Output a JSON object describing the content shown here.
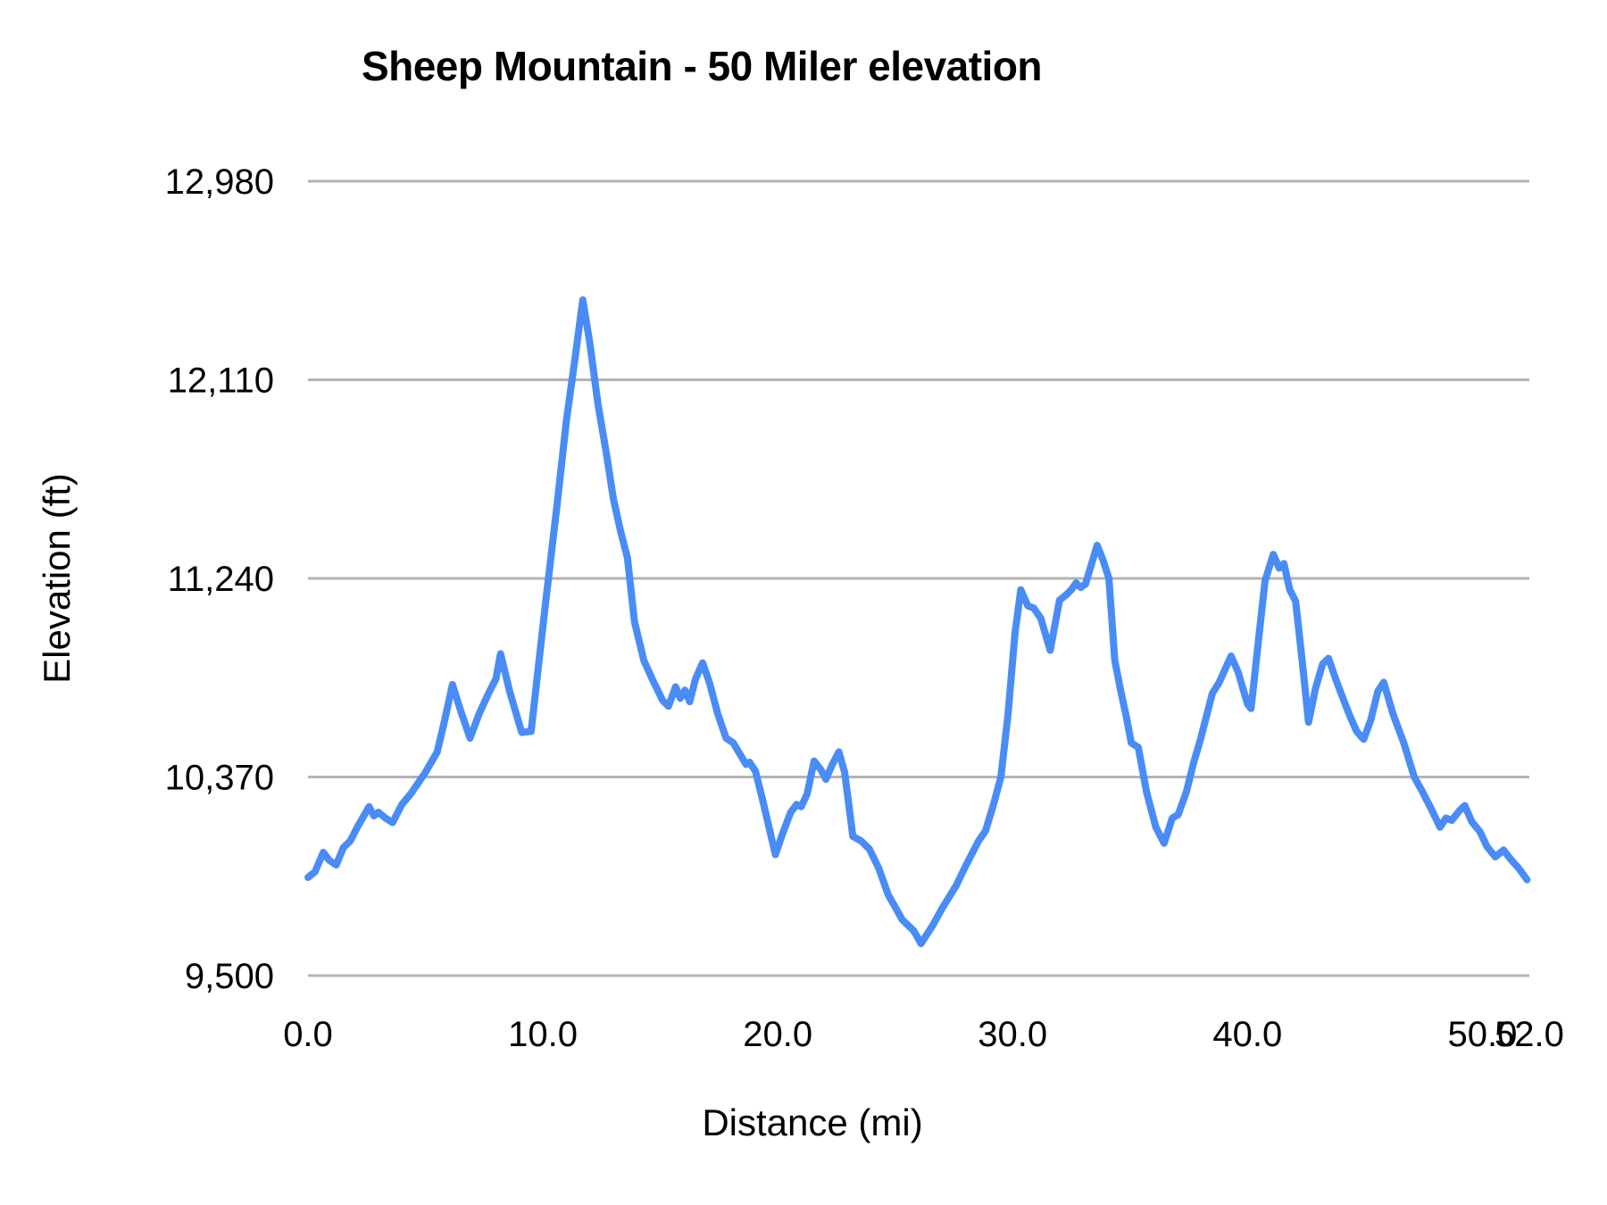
{
  "chart_data": {
    "type": "line",
    "title": "Sheep Mountain - 50 Miler elevation",
    "xlabel": "Distance (mi)",
    "ylabel": "Elevation (ft)",
    "xlim": [
      0,
      52
    ],
    "ylim": [
      9500,
      12980
    ],
    "grid": true,
    "legend_position": "none",
    "line_color": "#4a8cf5",
    "gridline_color": "#b3b3b3",
    "x_ticks": [
      0,
      10,
      20,
      30,
      40,
      50,
      52
    ],
    "x_tick_labels": [
      "0.0",
      "10.0",
      "20.0",
      "30.0",
      "40.0",
      "50.0",
      "52.0"
    ],
    "y_ticks": [
      9500,
      10370,
      11240,
      12110,
      12980
    ],
    "y_tick_labels": [
      "9,500",
      "10,370",
      "11,240",
      "12,110",
      "12,980"
    ],
    "series": [
      {
        "name": "Elevation",
        "points": [
          [
            0.0,
            9930
          ],
          [
            0.3,
            9955
          ],
          [
            0.65,
            10040
          ],
          [
            0.9,
            10005
          ],
          [
            1.2,
            9985
          ],
          [
            1.5,
            10060
          ],
          [
            1.8,
            10090
          ],
          [
            2.1,
            10150
          ],
          [
            2.35,
            10195
          ],
          [
            2.6,
            10240
          ],
          [
            2.8,
            10200
          ],
          [
            3.0,
            10215
          ],
          [
            3.3,
            10190
          ],
          [
            3.6,
            10170
          ],
          [
            4.0,
            10250
          ],
          [
            4.4,
            10300
          ],
          [
            5.0,
            10390
          ],
          [
            5.5,
            10480
          ],
          [
            5.8,
            10610
          ],
          [
            6.15,
            10775
          ],
          [
            6.5,
            10660
          ],
          [
            6.9,
            10540
          ],
          [
            7.3,
            10650
          ],
          [
            7.7,
            10740
          ],
          [
            8.0,
            10800
          ],
          [
            8.2,
            10910
          ],
          [
            8.6,
            10740
          ],
          [
            9.1,
            10565
          ],
          [
            9.5,
            10570
          ],
          [
            10.1,
            11120
          ],
          [
            10.6,
            11560
          ],
          [
            11.0,
            11930
          ],
          [
            11.35,
            12190
          ],
          [
            11.7,
            12460
          ],
          [
            12.0,
            12270
          ],
          [
            12.35,
            12000
          ],
          [
            12.7,
            11790
          ],
          [
            13.0,
            11590
          ],
          [
            13.3,
            11450
          ],
          [
            13.6,
            11330
          ],
          [
            13.9,
            11050
          ],
          [
            14.3,
            10880
          ],
          [
            14.7,
            10790
          ],
          [
            15.1,
            10705
          ],
          [
            15.35,
            10680
          ],
          [
            15.65,
            10765
          ],
          [
            15.85,
            10715
          ],
          [
            16.05,
            10750
          ],
          [
            16.25,
            10700
          ],
          [
            16.5,
            10800
          ],
          [
            16.8,
            10870
          ],
          [
            17.1,
            10780
          ],
          [
            17.45,
            10645
          ],
          [
            17.8,
            10540
          ],
          [
            18.1,
            10520
          ],
          [
            18.45,
            10460
          ],
          [
            18.65,
            10425
          ],
          [
            18.8,
            10435
          ],
          [
            19.05,
            10395
          ],
          [
            19.4,
            10250
          ],
          [
            19.9,
            10030
          ],
          [
            20.2,
            10120
          ],
          [
            20.55,
            10215
          ],
          [
            20.8,
            10250
          ],
          [
            21.0,
            10240
          ],
          [
            21.25,
            10295
          ],
          [
            21.55,
            10440
          ],
          [
            21.85,
            10400
          ],
          [
            22.05,
            10360
          ],
          [
            22.3,
            10420
          ],
          [
            22.6,
            10480
          ],
          [
            22.85,
            10390
          ],
          [
            23.2,
            10110
          ],
          [
            23.55,
            10090
          ],
          [
            23.9,
            10055
          ],
          [
            24.3,
            9970
          ],
          [
            24.7,
            9855
          ],
          [
            25.3,
            9745
          ],
          [
            25.8,
            9695
          ],
          [
            26.1,
            9640
          ],
          [
            26.6,
            9720
          ],
          [
            27.0,
            9795
          ],
          [
            27.6,
            9895
          ],
          [
            27.95,
            9970
          ],
          [
            28.3,
            10040
          ],
          [
            28.55,
            10090
          ],
          [
            28.85,
            10135
          ],
          [
            29.2,
            10255
          ],
          [
            29.5,
            10370
          ],
          [
            29.8,
            10640
          ],
          [
            30.1,
            11000
          ],
          [
            30.35,
            11190
          ],
          [
            30.65,
            11120
          ],
          [
            30.9,
            11110
          ],
          [
            31.2,
            11065
          ],
          [
            31.6,
            10925
          ],
          [
            32.0,
            11145
          ],
          [
            32.25,
            11165
          ],
          [
            32.5,
            11190
          ],
          [
            32.7,
            11220
          ],
          [
            32.9,
            11200
          ],
          [
            33.1,
            11215
          ],
          [
            33.35,
            11300
          ],
          [
            33.6,
            11385
          ],
          [
            33.85,
            11320
          ],
          [
            34.1,
            11240
          ],
          [
            34.35,
            10880
          ],
          [
            34.6,
            10750
          ],
          [
            34.85,
            10630
          ],
          [
            35.05,
            10520
          ],
          [
            35.35,
            10500
          ],
          [
            35.7,
            10305
          ],
          [
            36.1,
            10150
          ],
          [
            36.45,
            10080
          ],
          [
            36.8,
            10190
          ],
          [
            37.05,
            10205
          ],
          [
            37.4,
            10305
          ],
          [
            37.7,
            10430
          ],
          [
            38.0,
            10535
          ],
          [
            38.5,
            10735
          ],
          [
            38.8,
            10785
          ],
          [
            39.3,
            10900
          ],
          [
            39.6,
            10830
          ],
          [
            40.0,
            10690
          ],
          [
            40.15,
            10670
          ],
          [
            40.45,
            10950
          ],
          [
            40.75,
            11230
          ],
          [
            41.1,
            11345
          ],
          [
            41.35,
            11285
          ],
          [
            41.55,
            11305
          ],
          [
            41.8,
            11190
          ],
          [
            42.05,
            11140
          ],
          [
            42.35,
            10860
          ],
          [
            42.6,
            10610
          ],
          [
            42.9,
            10760
          ],
          [
            43.2,
            10865
          ],
          [
            43.45,
            10890
          ],
          [
            43.75,
            10800
          ],
          [
            44.1,
            10705
          ],
          [
            44.35,
            10640
          ],
          [
            44.65,
            10570
          ],
          [
            44.95,
            10535
          ],
          [
            45.25,
            10620
          ],
          [
            45.55,
            10745
          ],
          [
            45.8,
            10785
          ],
          [
            46.2,
            10645
          ],
          [
            46.65,
            10520
          ],
          [
            47.1,
            10370
          ],
          [
            47.45,
            10305
          ],
          [
            47.8,
            10235
          ],
          [
            48.2,
            10150
          ],
          [
            48.45,
            10190
          ],
          [
            48.7,
            10180
          ],
          [
            49.0,
            10220
          ],
          [
            49.25,
            10245
          ],
          [
            49.55,
            10175
          ],
          [
            49.9,
            10130
          ],
          [
            50.2,
            10065
          ],
          [
            50.55,
            10020
          ],
          [
            50.9,
            10050
          ],
          [
            51.2,
            10010
          ],
          [
            51.55,
            9970
          ],
          [
            51.9,
            9920
          ]
        ]
      }
    ]
  }
}
